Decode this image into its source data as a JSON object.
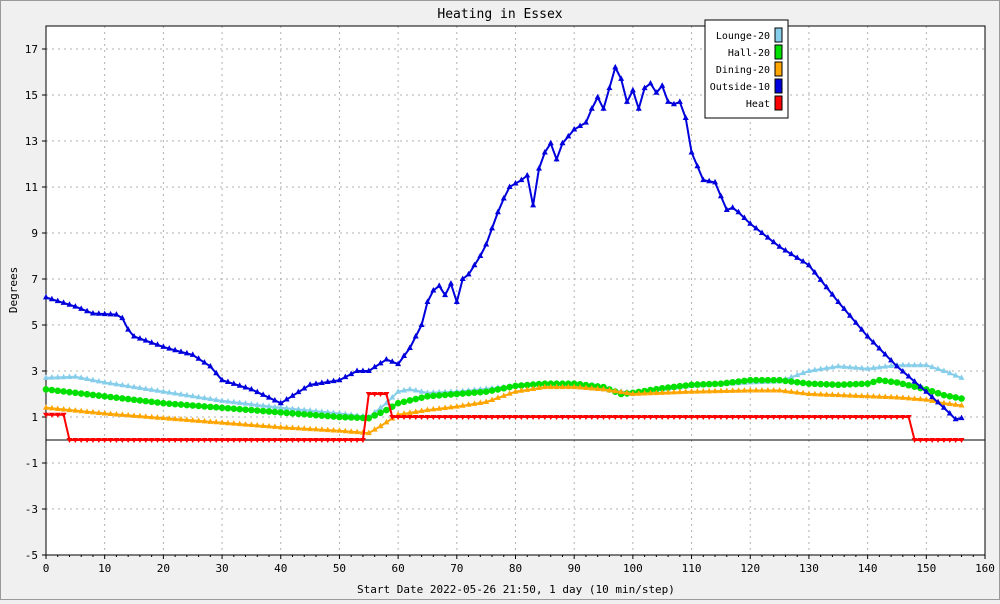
{
  "chart_data": {
    "type": "line",
    "title": "Heating in Essex",
    "xlabel": "Start Date 2022-05-26 21:50, 1 day (10 min/step)",
    "ylabel": "Degrees",
    "xlim": [
      0,
      160
    ],
    "ylim": [
      -5,
      18
    ],
    "x_ticks": [
      0,
      10,
      20,
      30,
      40,
      50,
      60,
      70,
      80,
      90,
      100,
      110,
      120,
      130,
      140,
      150,
      160
    ],
    "y_ticks": [
      -5,
      -3,
      -1,
      1,
      3,
      5,
      7,
      9,
      11,
      13,
      15,
      17
    ],
    "grid": true,
    "legend_position": "top-right",
    "zero_line": true,
    "series": [
      {
        "name": "Lounge-20",
        "color": "#87ceeb",
        "marker": "triangle",
        "points": [
          [
            0,
            2.7
          ],
          [
            5,
            2.75
          ],
          [
            10,
            2.5
          ],
          [
            20,
            2.1
          ],
          [
            30,
            1.7
          ],
          [
            40,
            1.4
          ],
          [
            50,
            1.15
          ],
          [
            55,
            1.0
          ],
          [
            58,
            1.6
          ],
          [
            60,
            2.1
          ],
          [
            62,
            2.2
          ],
          [
            65,
            2.05
          ],
          [
            70,
            2.1
          ],
          [
            80,
            2.35
          ],
          [
            85,
            2.45
          ],
          [
            90,
            2.4
          ],
          [
            95,
            2.2
          ],
          [
            100,
            2.05
          ],
          [
            105,
            2.2
          ],
          [
            110,
            2.35
          ],
          [
            120,
            2.5
          ],
          [
            125,
            2.55
          ],
          [
            130,
            3.0
          ],
          [
            135,
            3.2
          ],
          [
            140,
            3.1
          ],
          [
            145,
            3.25
          ],
          [
            150,
            3.25
          ],
          [
            153,
            3.0
          ],
          [
            156,
            2.7
          ]
        ]
      },
      {
        "name": "Hall-20",
        "color": "#00e000",
        "marker": "circle",
        "points": [
          [
            0,
            2.2
          ],
          [
            10,
            1.9
          ],
          [
            20,
            1.6
          ],
          [
            30,
            1.4
          ],
          [
            40,
            1.2
          ],
          [
            50,
            1.0
          ],
          [
            55,
            0.95
          ],
          [
            58,
            1.3
          ],
          [
            60,
            1.6
          ],
          [
            65,
            1.9
          ],
          [
            70,
            2.0
          ],
          [
            75,
            2.1
          ],
          [
            80,
            2.35
          ],
          [
            85,
            2.45
          ],
          [
            90,
            2.45
          ],
          [
            95,
            2.3
          ],
          [
            98,
            2.0
          ],
          [
            100,
            2.05
          ],
          [
            105,
            2.25
          ],
          [
            110,
            2.4
          ],
          [
            115,
            2.45
          ],
          [
            120,
            2.6
          ],
          [
            125,
            2.6
          ],
          [
            130,
            2.45
          ],
          [
            135,
            2.4
          ],
          [
            140,
            2.45
          ],
          [
            142,
            2.6
          ],
          [
            145,
            2.5
          ],
          [
            150,
            2.2
          ],
          [
            153,
            1.95
          ],
          [
            156,
            1.8
          ]
        ]
      },
      {
        "name": "Dining-20",
        "color": "#ffa500",
        "marker": "triangle",
        "points": [
          [
            0,
            1.4
          ],
          [
            10,
            1.15
          ],
          [
            20,
            0.95
          ],
          [
            30,
            0.75
          ],
          [
            40,
            0.55
          ],
          [
            50,
            0.4
          ],
          [
            55,
            0.3
          ],
          [
            57,
            0.6
          ],
          [
            60,
            1.1
          ],
          [
            65,
            1.3
          ],
          [
            70,
            1.45
          ],
          [
            75,
            1.65
          ],
          [
            80,
            2.1
          ],
          [
            85,
            2.3
          ],
          [
            90,
            2.3
          ],
          [
            95,
            2.2
          ],
          [
            100,
            2.0
          ],
          [
            105,
            2.05
          ],
          [
            110,
            2.1
          ],
          [
            120,
            2.15
          ],
          [
            125,
            2.15
          ],
          [
            130,
            2.0
          ],
          [
            140,
            1.9
          ],
          [
            145,
            1.85
          ],
          [
            150,
            1.75
          ],
          [
            153,
            1.6
          ],
          [
            156,
            1.5
          ]
        ]
      },
      {
        "name": "Outside-10",
        "color": "#0000dd",
        "marker": "triangle",
        "points": [
          [
            0,
            6.2
          ],
          [
            5,
            5.8
          ],
          [
            8,
            5.5
          ],
          [
            12,
            5.45
          ],
          [
            13,
            5.3
          ],
          [
            14,
            4.8
          ],
          [
            15,
            4.5
          ],
          [
            20,
            4.05
          ],
          [
            22,
            3.9
          ],
          [
            25,
            3.7
          ],
          [
            28,
            3.2
          ],
          [
            30,
            2.6
          ],
          [
            35,
            2.2
          ],
          [
            40,
            1.6
          ],
          [
            45,
            2.4
          ],
          [
            50,
            2.6
          ],
          [
            53,
            3.0
          ],
          [
            55,
            3.0
          ],
          [
            58,
            3.5
          ],
          [
            60,
            3.3
          ],
          [
            62,
            4.0
          ],
          [
            64,
            5.0
          ],
          [
            65,
            6.0
          ],
          [
            66,
            6.5
          ],
          [
            67,
            6.7
          ],
          [
            68,
            6.3
          ],
          [
            69,
            6.8
          ],
          [
            70,
            6.0
          ],
          [
            71,
            7.0
          ],
          [
            72,
            7.2
          ],
          [
            74,
            8.0
          ],
          [
            75,
            8.5
          ],
          [
            76,
            9.2
          ],
          [
            77,
            9.9
          ],
          [
            78,
            10.5
          ],
          [
            79,
            11.0
          ],
          [
            81,
            11.3
          ],
          [
            82,
            11.5
          ],
          [
            83,
            10.2
          ],
          [
            84,
            11.8
          ],
          [
            85,
            12.5
          ],
          [
            86,
            12.9
          ],
          [
            87,
            12.2
          ],
          [
            88,
            12.9
          ],
          [
            90,
            13.5
          ],
          [
            92,
            13.8
          ],
          [
            93,
            14.4
          ],
          [
            94,
            14.9
          ],
          [
            95,
            14.4
          ],
          [
            96,
            15.3
          ],
          [
            97,
            16.2
          ],
          [
            98,
            15.7
          ],
          [
            99,
            14.7
          ],
          [
            100,
            15.2
          ],
          [
            101,
            14.4
          ],
          [
            102,
            15.3
          ],
          [
            103,
            15.5
          ],
          [
            104,
            15.1
          ],
          [
            105,
            15.4
          ],
          [
            106,
            14.7
          ],
          [
            107,
            14.6
          ],
          [
            108,
            14.7
          ],
          [
            109,
            14.0
          ],
          [
            110,
            12.5
          ],
          [
            112,
            11.3
          ],
          [
            114,
            11.2
          ],
          [
            116,
            10.0
          ],
          [
            117,
            10.1
          ],
          [
            118,
            9.9
          ],
          [
            120,
            9.4
          ],
          [
            125,
            8.4
          ],
          [
            130,
            7.6
          ],
          [
            135,
            6.0
          ],
          [
            140,
            4.5
          ],
          [
            145,
            3.2
          ],
          [
            150,
            2.1
          ],
          [
            153,
            1.4
          ],
          [
            155,
            0.9
          ],
          [
            156,
            0.95
          ]
        ]
      },
      {
        "name": "Heat",
        "color": "#ff0000",
        "marker": "triangle-down",
        "points": [
          [
            0,
            1.1
          ],
          [
            3,
            1.1
          ],
          [
            4,
            0.0
          ],
          [
            54,
            0.0
          ],
          [
            55,
            2.0
          ],
          [
            58,
            2.0
          ],
          [
            59,
            1.0
          ],
          [
            147,
            1.0
          ],
          [
            148,
            0.0
          ],
          [
            156,
            0.0
          ]
        ]
      }
    ]
  }
}
